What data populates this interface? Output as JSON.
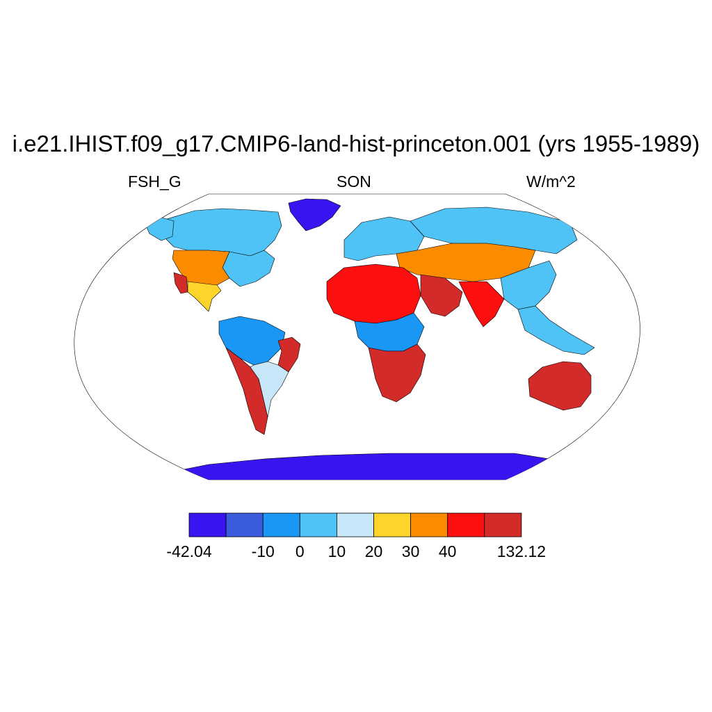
{
  "title": "i.e21.IHIST.f09_g17.CMIP6-land-hist-princeton.001 (yrs 1955-1989)",
  "left_label": "FSH_G",
  "center_label": "SON",
  "right_label": "W/m^2",
  "colorbar": {
    "colors": [
      "#3a14f0",
      "#3b5ddd",
      "#1a96f5",
      "#4fc3f5",
      "#c7e6f7",
      "#fcd42a",
      "#fb8c00",
      "#fb0f0f",
      "#d32a2a"
    ],
    "labels": [
      "-42.04",
      "",
      "-10",
      "0",
      "10",
      "20",
      "30",
      "40",
      "",
      "132.12"
    ]
  },
  "regions": [
    {
      "name": "greenland",
      "class": 0
    },
    {
      "name": "antarctica",
      "class": 0
    },
    {
      "name": "canada-arctic",
      "class": 3
    },
    {
      "name": "alaska",
      "class": 3
    },
    {
      "name": "eastern-north-america",
      "class": 3
    },
    {
      "name": "western-us",
      "class": 6
    },
    {
      "name": "southwest-us",
      "class": 8
    },
    {
      "name": "mexico",
      "class": 5
    },
    {
      "name": "amazon",
      "class": 2
    },
    {
      "name": "brazil-east",
      "class": 8
    },
    {
      "name": "andes-patagonia",
      "class": 8
    },
    {
      "name": "south-america-south",
      "class": 4
    },
    {
      "name": "europe",
      "class": 3
    },
    {
      "name": "siberia",
      "class": 3
    },
    {
      "name": "central-asia",
      "class": 6
    },
    {
      "name": "sahara",
      "class": 7
    },
    {
      "name": "arabia",
      "class": 8
    },
    {
      "name": "india",
      "class": 7
    },
    {
      "name": "china",
      "class": 3
    },
    {
      "name": "central-africa",
      "class": 2
    },
    {
      "name": "southern-africa",
      "class": 8
    },
    {
      "name": "australia",
      "class": 8
    },
    {
      "name": "southeast-asia",
      "class": 3
    }
  ]
}
